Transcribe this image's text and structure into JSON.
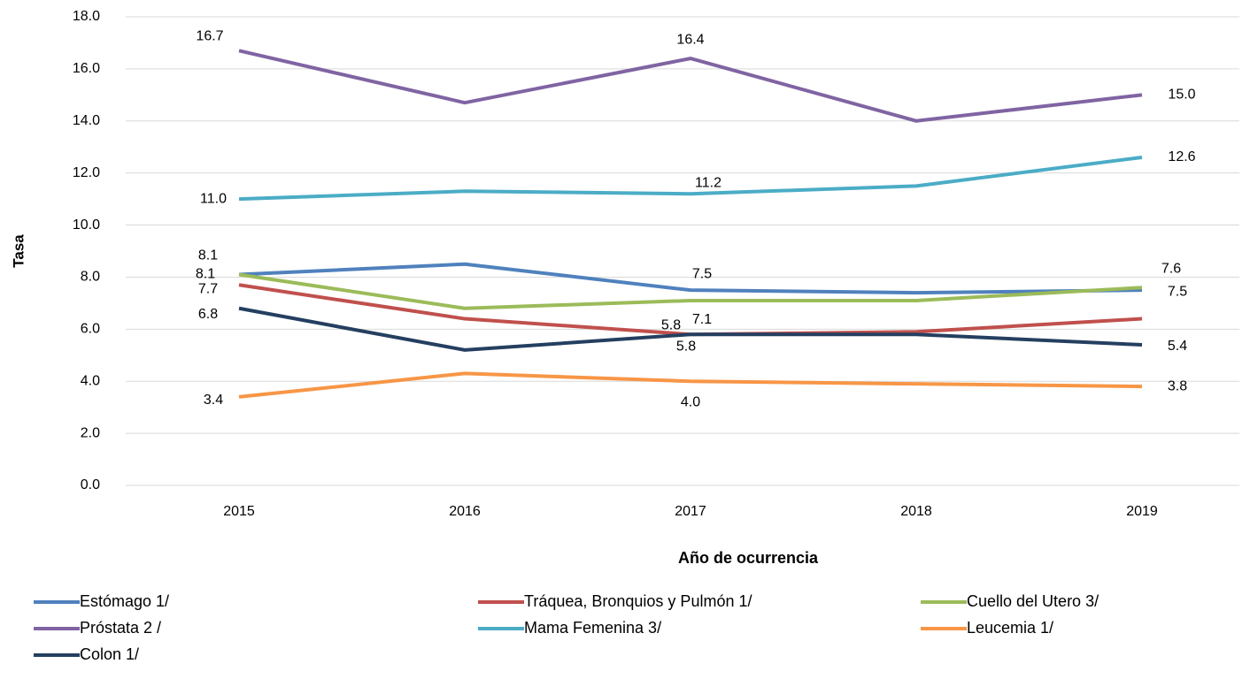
{
  "chart_data": {
    "type": "line",
    "ylabel": "Tasa",
    "xlabel": "Año de ocurrencia",
    "categories": [
      "2015",
      "2016",
      "2017",
      "2018",
      "2019"
    ],
    "ylim": [
      0,
      18
    ],
    "yticks": [
      {
        "value": 0,
        "label": "0.0"
      },
      {
        "value": 2,
        "label": "2.0"
      },
      {
        "value": 4,
        "label": "4.0"
      },
      {
        "value": 6,
        "label": "6.0"
      },
      {
        "value": 8,
        "label": "8.0"
      },
      {
        "value": 10,
        "label": "10.0"
      },
      {
        "value": 12,
        "label": "12.0"
      },
      {
        "value": 14,
        "label": "14.0"
      },
      {
        "value": 16,
        "label": "16.0"
      },
      {
        "value": 18,
        "label": "18.0"
      }
    ],
    "grid": true,
    "series": [
      {
        "name": "Estómago 1/",
        "color": "#4f81bd",
        "values": [
          8.1,
          8.5,
          7.5,
          7.4,
          7.5
        ],
        "value_labels": [
          "8.1",
          null,
          "7.5",
          null,
          "7.5"
        ]
      },
      {
        "name": "Tráquea, Bronquios y Pulmón 1/",
        "color": "#c0504d",
        "values": [
          7.7,
          6.4,
          5.8,
          5.9,
          6.4
        ],
        "value_labels": [
          "7.7",
          null,
          "5.8",
          null,
          null
        ]
      },
      {
        "name": "Cuello del Utero 3/",
        "color": "#9bbb59",
        "values": [
          8.1,
          6.8,
          7.1,
          7.1,
          7.6
        ],
        "value_labels": [
          "8.1",
          null,
          "7.1",
          null,
          "7.6"
        ]
      },
      {
        "name": "Próstata 2 /",
        "color": "#8064a2",
        "values": [
          16.7,
          14.7,
          16.4,
          14.0,
          15.0
        ],
        "value_labels": [
          "16.7",
          null,
          "16.4",
          null,
          "15.0"
        ]
      },
      {
        "name": "Mama Femenina 3/",
        "color": "#4bacc6",
        "values": [
          11.0,
          11.3,
          11.2,
          11.5,
          12.6
        ],
        "value_labels": [
          "11.0",
          null,
          "11.2",
          null,
          "12.6"
        ]
      },
      {
        "name": "Leucemia 1/",
        "color": "#f79646",
        "values": [
          3.4,
          4.3,
          4.0,
          3.9,
          3.8
        ],
        "value_labels": [
          "3.4",
          null,
          "4.0",
          null,
          "3.8"
        ]
      },
      {
        "name": "Colon 1/",
        "color": "#243f60",
        "values": [
          6.8,
          5.2,
          5.8,
          5.8,
          5.4
        ],
        "value_labels": [
          "6.8",
          null,
          "5.8",
          null,
          "5.4"
        ]
      }
    ]
  }
}
